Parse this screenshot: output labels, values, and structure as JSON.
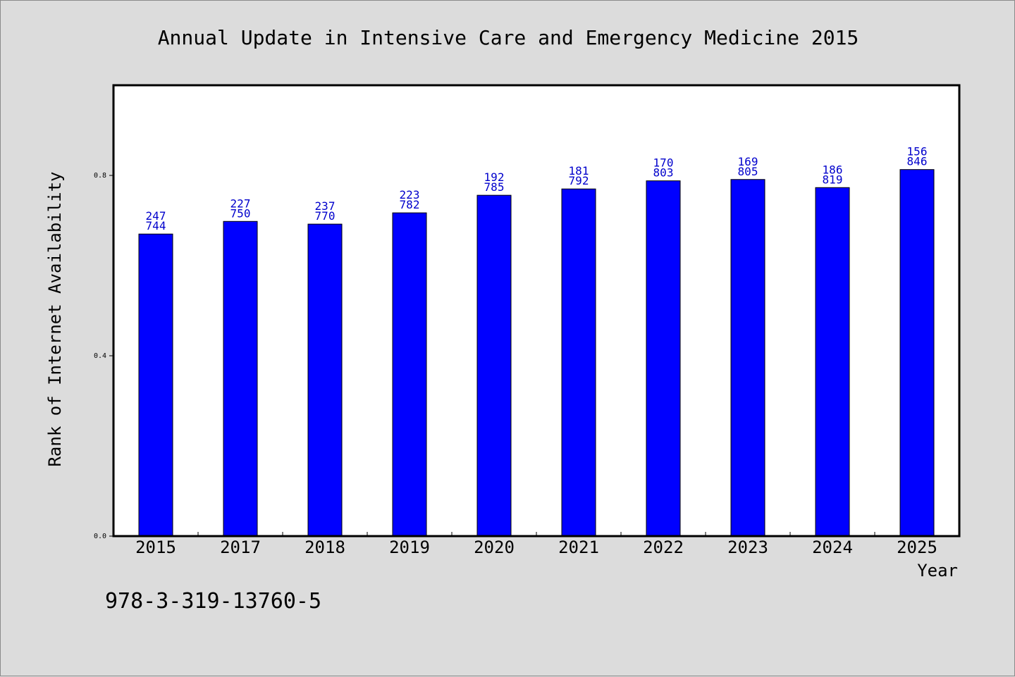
{
  "chart_data": {
    "type": "bar",
    "title": "Annual Update in Intensive Care and Emergency Medicine 2015",
    "xlabel": "Year",
    "ylabel": "Rank of Internet Availability",
    "categories": [
      "2015",
      "2017",
      "2018",
      "2019",
      "2020",
      "2021",
      "2022",
      "2023",
      "2024",
      "2025"
    ],
    "series": [
      {
        "values": [
          0.67,
          0.698,
          0.692,
          0.717,
          0.756,
          0.77,
          0.788,
          0.791,
          0.773,
          0.813
        ],
        "label_top": [
          "247",
          "227",
          "237",
          "223",
          "192",
          "181",
          "170",
          "169",
          "186",
          "156"
        ],
        "label_bottom": [
          "744",
          "750",
          "770",
          "782",
          "785",
          "792",
          "803",
          "805",
          "819",
          "846"
        ]
      }
    ],
    "ylim": [
      0,
      1.0
    ],
    "yticks": [
      "0.0",
      "0.4",
      "0.8"
    ],
    "grid": false,
    "bar_color": "#0000ff",
    "label_color": "#0000cc"
  },
  "footer": {
    "isbn": "978-3-319-13760-5"
  }
}
